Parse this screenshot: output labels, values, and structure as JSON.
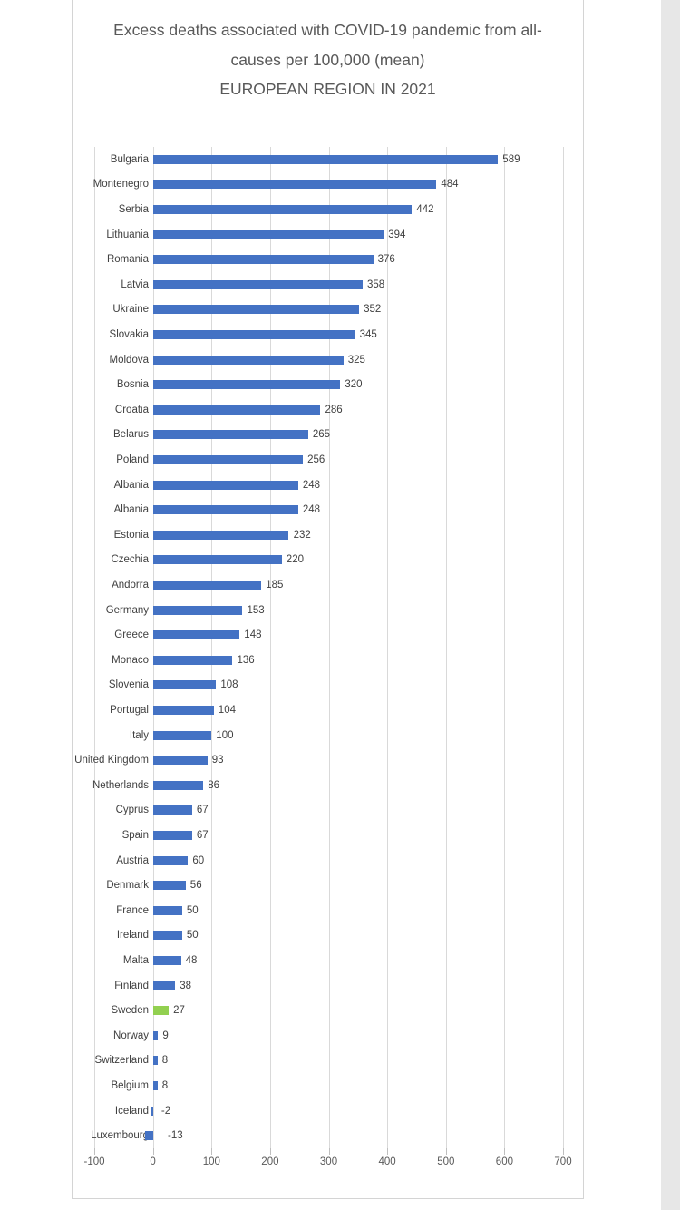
{
  "page": {
    "background": "#ffffff",
    "right_strip_color": "#e7e7e7",
    "panel_border_color": "#d4d4d4"
  },
  "chart_data": {
    "type": "bar",
    "orientation": "horizontal",
    "title": "Excess deaths associated with COVID-19 pandemic from all-causes per 100,000 (mean) EUROPEAN REGION IN 2021",
    "title_lines": [
      "Excess deaths associated with COVID-19 pandemic from all-",
      "causes per 100,000 (mean)",
      "EUROPEAN REGION IN 2021"
    ],
    "categories": [
      "Bulgaria",
      "Montenegro",
      "Serbia",
      "Lithuania",
      "Romania",
      "Latvia",
      "Ukraine",
      "Slovakia",
      "Moldova",
      "Bosnia",
      "Croatia",
      "Belarus",
      "Poland",
      "Albania",
      "Albania",
      "Estonia",
      "Czechia",
      "Andorra",
      "Germany",
      "Greece",
      "Monaco",
      "Slovenia",
      "Portugal",
      "Italy",
      "United Kingdom",
      "Netherlands",
      "Cyprus",
      "Spain",
      "Austria",
      "Denmark",
      "France",
      "Ireland",
      "Malta",
      "Finland",
      "Sweden",
      "Norway",
      "Switzerland",
      "Belgium",
      "Iceland",
      "Luxembourg"
    ],
    "values": [
      589,
      484,
      442,
      394,
      376,
      358,
      352,
      345,
      325,
      320,
      286,
      265,
      256,
      248,
      248,
      232,
      220,
      185,
      153,
      148,
      136,
      108,
      104,
      100,
      93,
      86,
      67,
      67,
      60,
      56,
      50,
      50,
      48,
      38,
      27,
      9,
      8,
      8,
      -2,
      -13
    ],
    "xlim": [
      -100,
      700
    ],
    "x_ticks": [
      -100,
      0,
      100,
      200,
      300,
      400,
      500,
      600,
      700
    ],
    "grid": "vertical",
    "legend": "none",
    "bar_color": "#4472c4",
    "highlight": {
      "category": "Sweden",
      "index": 34,
      "color": "#92d050"
    },
    "title_color": "#595959",
    "label_color": "#404040",
    "axis_color": "#595959",
    "gridline_color": "#d9d9d9"
  }
}
